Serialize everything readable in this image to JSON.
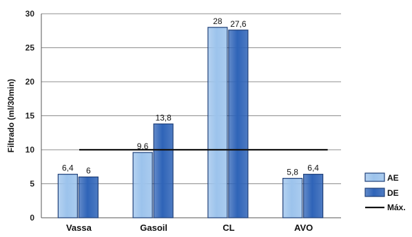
{
  "chart_data": {
    "type": "bar",
    "title": "",
    "xlabel": "",
    "ylabel": "Filtrado (ml/30min)",
    "ylim": [
      0,
      30
    ],
    "yticks": [
      0,
      5,
      10,
      15,
      20,
      25,
      30
    ],
    "grid": "horizontal",
    "legend_position": "bottom-right",
    "categories": [
      "Vassa",
      "Gasoil",
      "CL",
      "AVO"
    ],
    "series": [
      {
        "name": "AE",
        "values": [
          6.4,
          9.6,
          28,
          5.8
        ],
        "labels": [
          "6,4",
          "9,6",
          "28",
          "5,8"
        ],
        "color": "#9cc3ec"
      },
      {
        "name": "DE",
        "values": [
          6,
          13.8,
          27.6,
          6.4
        ],
        "labels": [
          "6",
          "13,8",
          "27,6",
          "6,4"
        ],
        "color": "#2f64b8"
      }
    ],
    "reference_line": {
      "name": "Máx.",
      "value": 10,
      "color": "#111111"
    }
  }
}
